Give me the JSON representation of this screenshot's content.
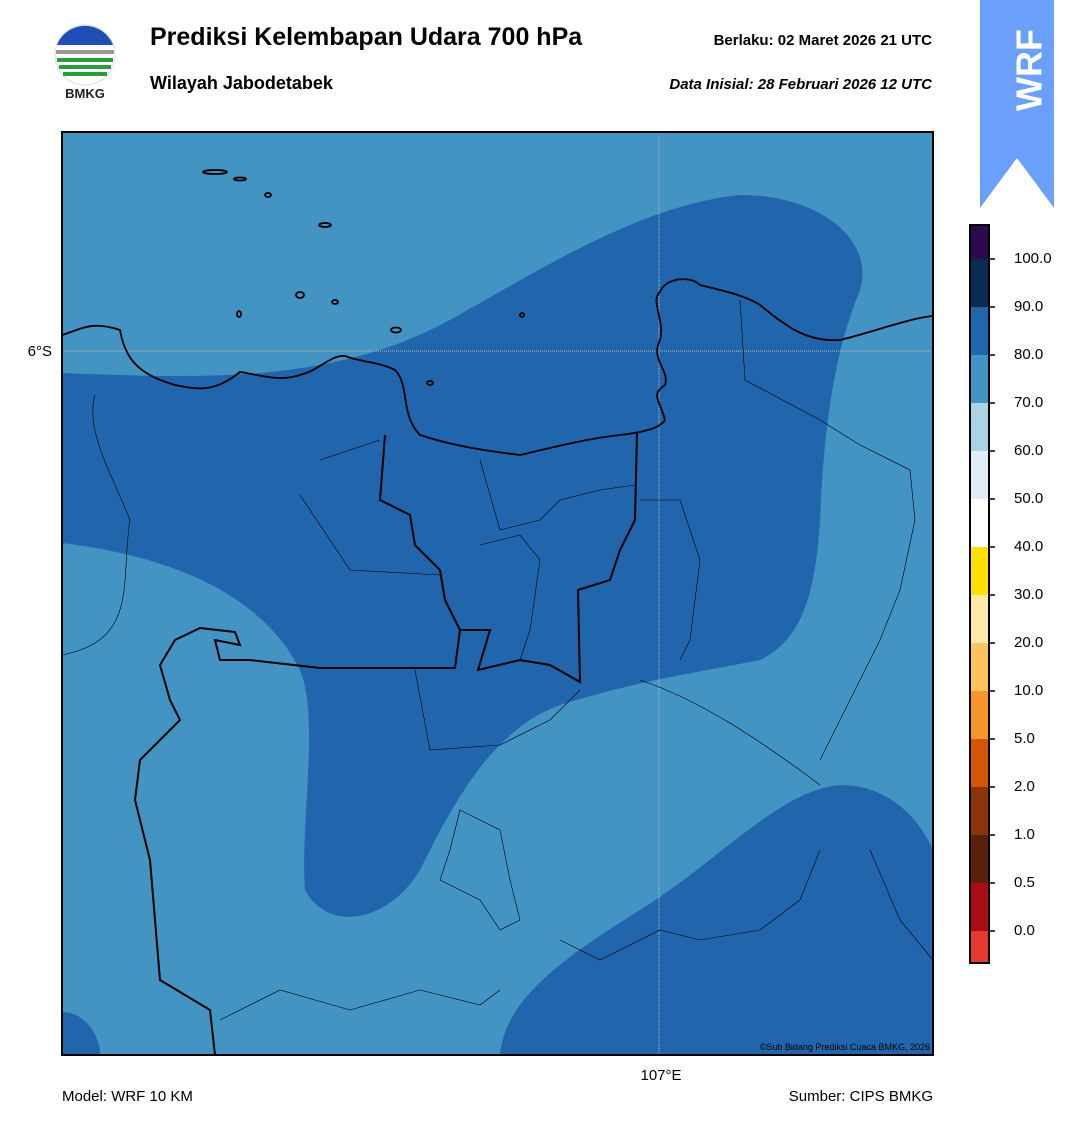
{
  "header": {
    "logo_text": "BMKG",
    "title": "Prediksi Kelembapan Udara 700 hPa",
    "subtitle": "Wilayah Jabodetabek",
    "valid": "Berlaku:  02 Maret 2026 21 UTC",
    "init": "Data Inisial:  28 Februari 2026 12 UTC"
  },
  "badge": "WRF",
  "map": {
    "lat_label": "6°S",
    "lon_label": "107°E",
    "copyright": "©Sub Bidang Prediksi Cuaca BMKG, 2026"
  },
  "colorbar": {
    "labels": [
      "100.0",
      "90.0",
      "80.0",
      "70.0",
      "60.0",
      "50.0",
      "40.0",
      "30.0",
      "20.0",
      "10.0",
      "5.0",
      "2.0",
      "1.0",
      "0.5",
      "0.0"
    ],
    "colors": [
      "#2d0a4e",
      "#0c2a52",
      "#2166ac",
      "#4393c3",
      "#a9d4e6",
      "#e1edf6",
      "#ffffff",
      "#ffe000",
      "#fde8a8",
      "#fcc35e",
      "#f7962b",
      "#d35608",
      "#8a3508",
      "#5b210d",
      "#a80d16",
      "#e63a2f"
    ]
  },
  "footer": {
    "model": "Model: WRF 10 KM",
    "source": "Sumber: CIPS BMKG"
  }
}
